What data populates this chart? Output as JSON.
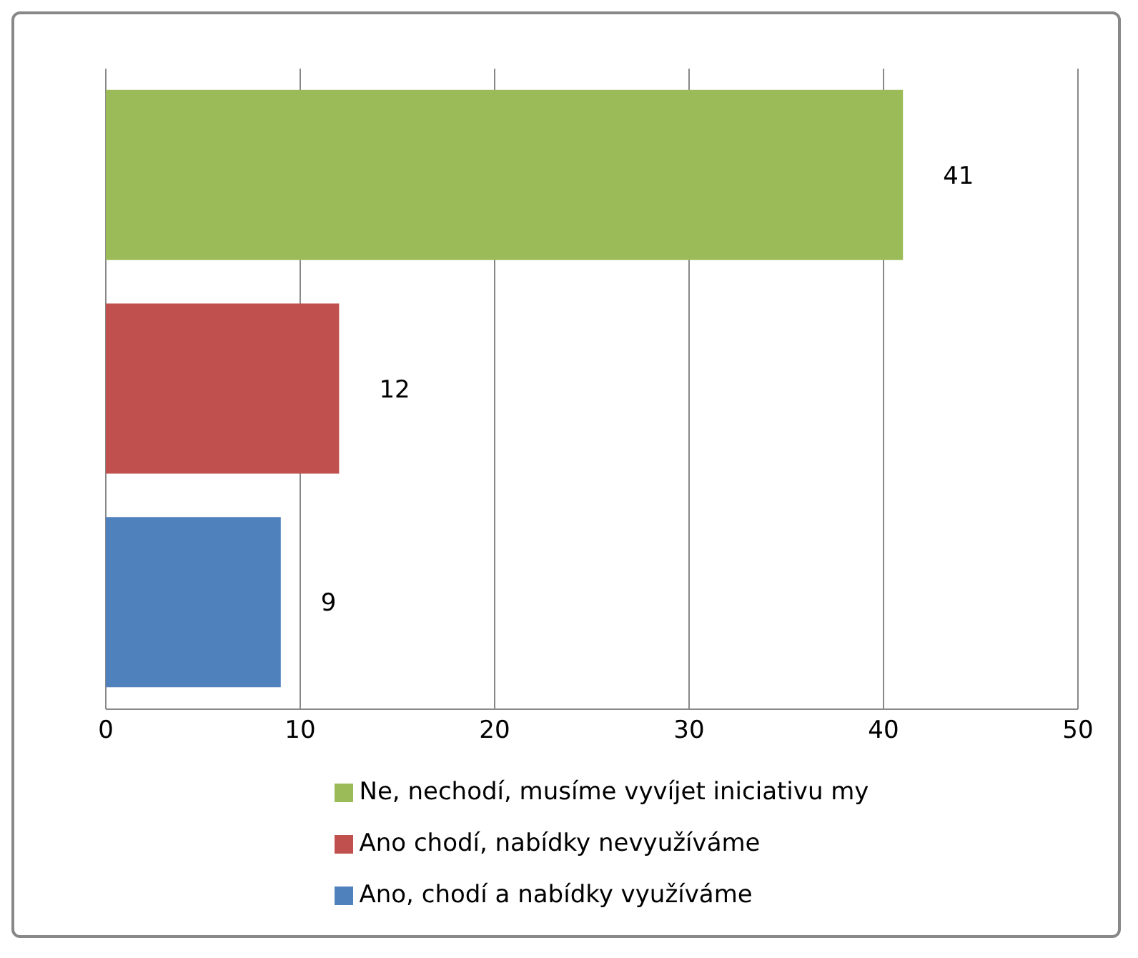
{
  "chart_data": {
    "type": "bar",
    "orientation": "horizontal",
    "stacked": true,
    "categories": [
      null,
      null,
      null
    ],
    "series": [
      {
        "name": "Ne, nechodí, musíme vyvíjet iniciativu my",
        "color": "#9bbb59",
        "values": [
          41,
          null,
          null
        ]
      },
      {
        "name": "Ano chodí, nabídky nevyužíváme",
        "color": "#c0504d",
        "values": [
          null,
          12,
          null
        ]
      },
      {
        "name": "Ano, chodí a nabídky využíváme",
        "color": "#4f81bd",
        "values": [
          null,
          null,
          9
        ]
      }
    ],
    "xlim": [
      0,
      50
    ],
    "xticks": [
      0,
      10,
      20,
      30,
      40,
      50
    ],
    "grid": "x",
    "legend": "bottom",
    "data_labels": true
  }
}
